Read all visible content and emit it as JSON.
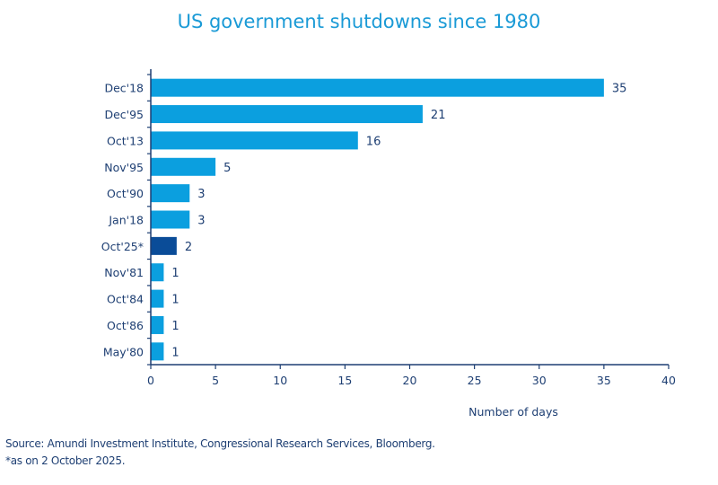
{
  "chart_data": {
    "type": "bar",
    "orientation": "horizontal",
    "title": "US government shutdowns since 1980",
    "xlabel": "Number of days",
    "ylabel": "",
    "categories": [
      "Dec'18",
      "Dec'95",
      "Oct'13",
      "Nov'95",
      "Oct'90",
      "Jan'18",
      "Oct'25*",
      "Nov'81",
      "Oct'84",
      "Oct'86",
      "May'80"
    ],
    "values": [
      35,
      21,
      16,
      5,
      3,
      3,
      2,
      1,
      1,
      1,
      1
    ],
    "highlight": [
      "Oct'25*"
    ],
    "xlim": [
      0,
      40
    ],
    "xticks": [
      0,
      5,
      10,
      15,
      20,
      25,
      30,
      35,
      40
    ],
    "grid": false,
    "data_labels": true,
    "colors": {
      "bar": "#0b9fdf",
      "highlight": "#0a4c98",
      "axis": "#1e3f73",
      "text": "#1e3f73",
      "title": "#1a9ad6"
    }
  },
  "notes": {
    "source": "Source: Amundi Investment Institute, Congressional Research Services, Bloomberg.",
    "footnote": "*as on 2 October 2025."
  }
}
